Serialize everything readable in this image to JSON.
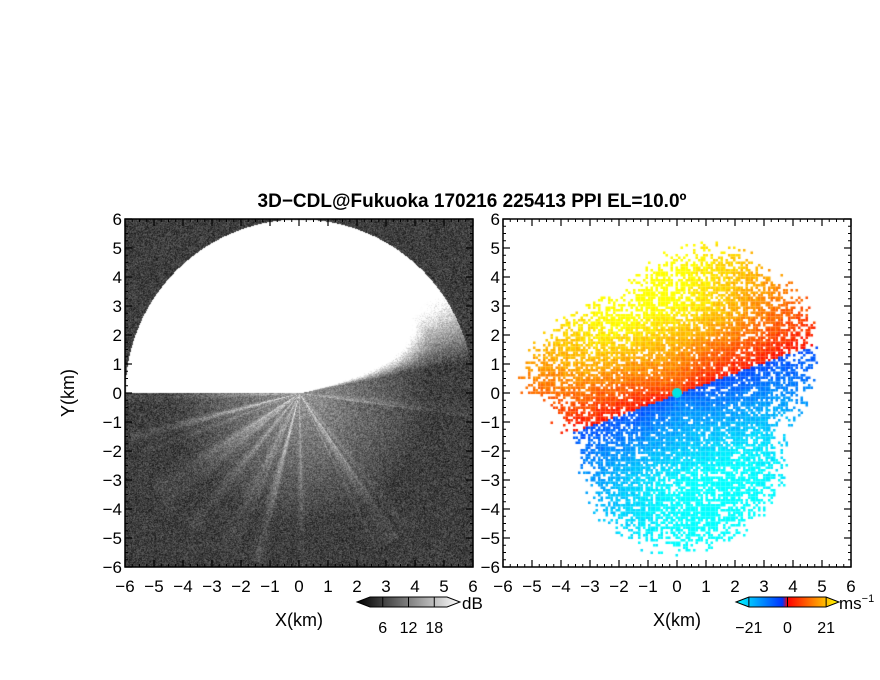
{
  "title": "3D−CDL@Fukuoka 170216 225413 PPI EL=10.0º",
  "chart_data": [
    {
      "type": "heatmap",
      "panel": "left",
      "field": "intensity (grayscale)",
      "xlabel": "X(km)",
      "ylabel": "Y(km)",
      "xlim": [
        -6,
        6
      ],
      "ylim": [
        -6,
        6
      ],
      "xticks": [
        "−6",
        "−5",
        "−4",
        "−3",
        "−2",
        "−1",
        "0",
        "1",
        "2",
        "3",
        "4",
        "5",
        "6"
      ],
      "yticks": [
        "−6",
        "−5",
        "−4",
        "−3",
        "−2",
        "−1",
        "0",
        "1",
        "2",
        "3",
        "4",
        "5",
        "6"
      ],
      "colorbar": {
        "unit": "dB",
        "ticks": [
          "6",
          "12",
          "18"
        ],
        "tick_values": [
          6,
          12,
          18
        ],
        "range": [
          0,
          24
        ],
        "colors": [
          "#000000",
          "#ffffff"
        ]
      }
    },
    {
      "type": "heatmap",
      "panel": "right",
      "field": "Doppler velocity",
      "xlabel": "X(km)",
      "xlim": [
        -6,
        6
      ],
      "ylim": [
        -6,
        6
      ],
      "xticks": [
        "−6",
        "−5",
        "−4",
        "−3",
        "−2",
        "−1",
        "0",
        "1",
        "2",
        "3",
        "4",
        "5",
        "6"
      ],
      "yticks": [
        "−6",
        "−5",
        "−4",
        "−3",
        "−2",
        "−1",
        "0",
        "1",
        "2",
        "3",
        "4",
        "5",
        "6"
      ],
      "colorbar": {
        "unit": "ms",
        "unit_exponent": "−1",
        "ticks": [
          "−21",
          "0",
          "21"
        ],
        "tick_values": [
          -21,
          0,
          21
        ],
        "range": [
          -28,
          28
        ],
        "colors": [
          "#00ffff",
          "#0033ff",
          "#ff0000",
          "#ffff00"
        ]
      }
    }
  ]
}
